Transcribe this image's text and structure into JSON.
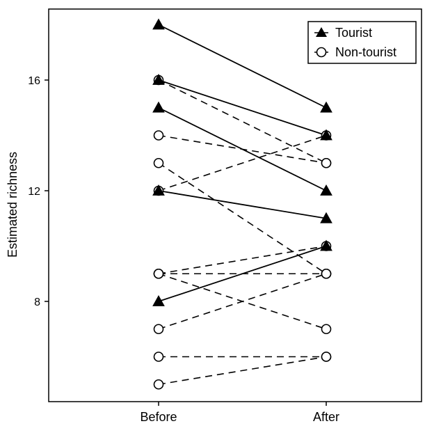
{
  "chart_data": {
    "type": "line",
    "title": "",
    "xlabel": "",
    "ylabel": "Estimated richness",
    "categories": [
      "Before",
      "After"
    ],
    "ylim": [
      4.9,
      18.4
    ],
    "yticks": [
      8,
      12,
      16
    ],
    "ytick_labels": [
      "8",
      "12",
      "16"
    ],
    "legend": {
      "position": "top-right",
      "entries": [
        {
          "label": "Tourist",
          "marker": "filled-triangle",
          "line": "solid"
        },
        {
          "label": "Non-tourist",
          "marker": "open-circle",
          "line": "dashed"
        }
      ]
    },
    "series": [
      {
        "group": "Tourist",
        "values": [
          18,
          15
        ]
      },
      {
        "group": "Tourist",
        "values": [
          16,
          14
        ]
      },
      {
        "group": "Tourist",
        "values": [
          15,
          12
        ]
      },
      {
        "group": "Tourist",
        "values": [
          12,
          11
        ]
      },
      {
        "group": "Tourist",
        "values": [
          8,
          10
        ]
      },
      {
        "group": "Non-tourist",
        "values": [
          16,
          13
        ]
      },
      {
        "group": "Non-tourist",
        "values": [
          14,
          13
        ]
      },
      {
        "group": "Non-tourist",
        "values": [
          13,
          9
        ]
      },
      {
        "group": "Non-tourist",
        "values": [
          12,
          14
        ]
      },
      {
        "group": "Non-tourist",
        "values": [
          9,
          10
        ]
      },
      {
        "group": "Non-tourist",
        "values": [
          9,
          9
        ]
      },
      {
        "group": "Non-tourist",
        "values": [
          9,
          7
        ]
      },
      {
        "group": "Non-tourist",
        "values": [
          7,
          9
        ]
      },
      {
        "group": "Non-tourist",
        "values": [
          6,
          6
        ]
      },
      {
        "group": "Non-tourist",
        "values": [
          5,
          6
        ]
      }
    ]
  }
}
